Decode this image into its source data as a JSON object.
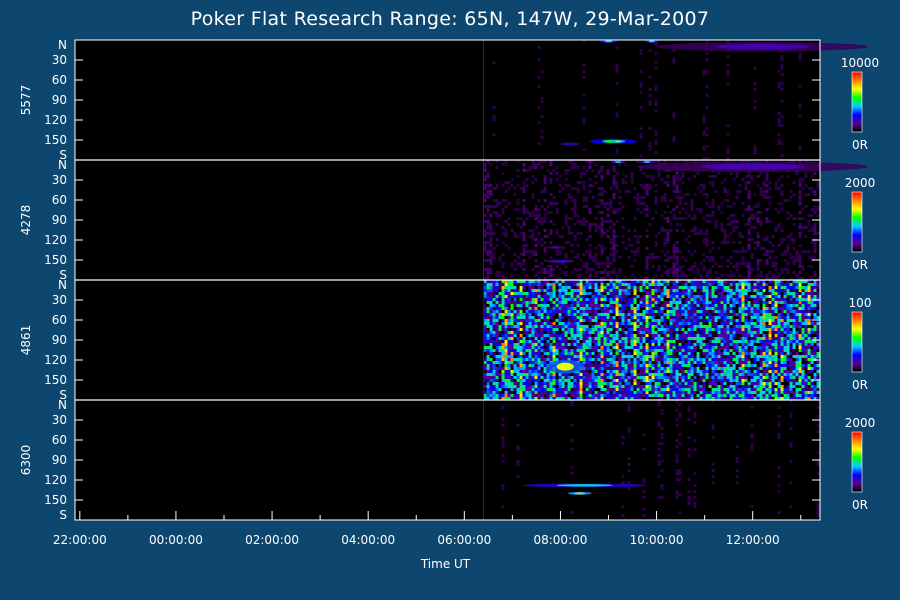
{
  "chart_data": {
    "type": "heatmap",
    "title": "Poker Flat Research Range: 65N, 147W, 29-Mar-2007",
    "xlabel": "Time UT",
    "x_tick_labels": [
      "22:00:00",
      "00:00:00",
      "02:00:00",
      "04:00:00",
      "06:00:00",
      "08:00:00",
      "10:00:00",
      "12:00:00"
    ],
    "x_range_hours_since_22": [
      -0.1,
      15.4
    ],
    "data_start_hours_since_22": 8.4,
    "y_tick_labels": [
      "N",
      "30",
      "60",
      "90",
      "120",
      "150",
      "S"
    ],
    "y_range_deg": [
      0,
      180
    ],
    "colormap": [
      "#000000",
      "#5a0090",
      "#0000ff",
      "#00d0ff",
      "#00ff00",
      "#ffff00",
      "#ff8000",
      "#ff0000"
    ],
    "panels": [
      {
        "label": "5577",
        "colorbar_max": "10000",
        "colorbar_min": "0R",
        "noise": 0.05,
        "features": [
          {
            "t": 11.1,
            "zenith": 152,
            "dt": 0.5,
            "dz": 4,
            "intensity": 0.55
          },
          {
            "t": 11.2,
            "zenith": 152,
            "dt": 0.15,
            "dz": 2,
            "intensity": 0.8
          },
          {
            "t": 10.2,
            "zenith": 156,
            "dt": 0.2,
            "dz": 2,
            "intensity": 0.25
          },
          {
            "t": 11.0,
            "zenith": 2,
            "dt": 0.2,
            "dz": 2,
            "intensity": 0.5
          },
          {
            "t": 11.9,
            "zenith": 2,
            "dt": 0.15,
            "dz": 2,
            "intensity": 0.5
          },
          {
            "t": 14.2,
            "zenith": 10,
            "dt": 2.2,
            "dz": 7,
            "intensity": 0.18
          }
        ]
      },
      {
        "label": "4278",
        "colorbar_max": "2000",
        "colorbar_min": "0R",
        "noise": 0.08,
        "features": [
          {
            "t": 10.0,
            "zenith": 152,
            "dt": 0.3,
            "dz": 2,
            "intensity": 0.3
          },
          {
            "t": 9.9,
            "zenith": 131,
            "dt": 0.2,
            "dz": 2,
            "intensity": 0.2
          },
          {
            "t": 11.2,
            "zenith": 3,
            "dt": 0.15,
            "dz": 2,
            "intensity": 0.45
          },
          {
            "t": 11.8,
            "zenith": 3,
            "dt": 0.15,
            "dz": 2,
            "intensity": 0.45
          },
          {
            "t": 14.0,
            "zenith": 10,
            "dt": 2.4,
            "dz": 8,
            "intensity": 0.18
          }
        ]
      },
      {
        "label": "4861",
        "colorbar_max": "100",
        "colorbar_min": "0R",
        "noise": 0.55,
        "features": [
          {
            "t": 10.1,
            "zenith": 130,
            "dt": 0.4,
            "dz": 10,
            "intensity": 0.7
          }
        ]
      },
      {
        "label": "6300",
        "colorbar_max": "2000",
        "colorbar_min": "0R",
        "noise": 0.05,
        "features": [
          {
            "t": 10.5,
            "zenith": 128,
            "dt": 1.3,
            "dz": 3,
            "intensity": 0.45
          },
          {
            "t": 10.4,
            "zenith": 140,
            "dt": 0.25,
            "dz": 2,
            "intensity": 0.8
          }
        ]
      }
    ]
  }
}
